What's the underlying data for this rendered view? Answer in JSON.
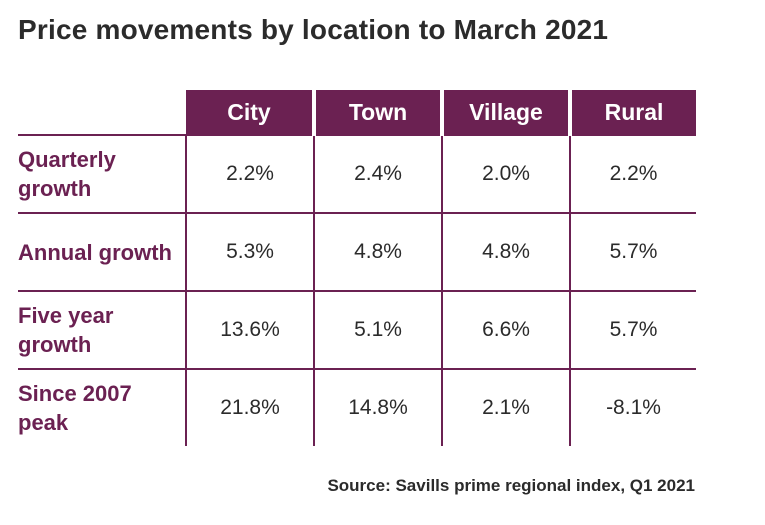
{
  "title": "Price movements by location to March 2021",
  "source": "Source: Savills prime regional index, Q1 2021",
  "colors": {
    "accent": "#6b2152",
    "header_text": "#ffffff",
    "row_label": "#6b2152"
  },
  "chart_data": {
    "type": "table",
    "title": "Price movements by location to March 2021",
    "columns": [
      "City",
      "Town",
      "Village",
      "Rural"
    ],
    "rows": [
      {
        "label": "Quarterly growth",
        "values": [
          "2.2%",
          "2.4%",
          "2.0%",
          "2.2%"
        ]
      },
      {
        "label": "Annual growth",
        "values": [
          "5.3%",
          "4.8%",
          "4.8%",
          "5.7%"
        ]
      },
      {
        "label": "Five year growth",
        "values": [
          "13.6%",
          "5.1%",
          "6.6%",
          "5.7%"
        ]
      },
      {
        "label": "Since 2007 peak",
        "values": [
          "21.8%",
          "14.8%",
          "2.1%",
          "-8.1%"
        ]
      }
    ]
  }
}
